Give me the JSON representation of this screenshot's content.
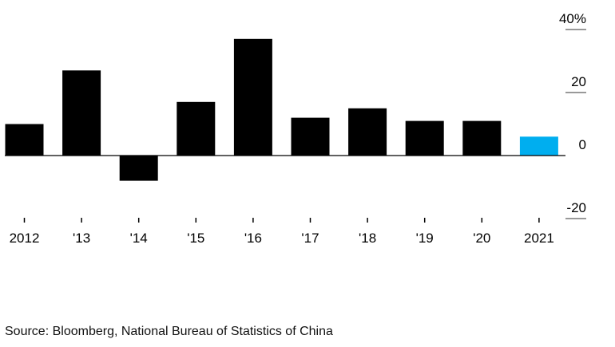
{
  "chart_data": {
    "type": "bar",
    "categories": [
      "2012",
      "'13",
      "'14",
      "'15",
      "'16",
      "'17",
      "'18",
      "'19",
      "'20",
      "2021"
    ],
    "values": [
      10,
      27,
      -8,
      17,
      37,
      12,
      15,
      11,
      11,
      6
    ],
    "title": "",
    "xlabel": "",
    "ylabel": "",
    "ylim": [
      -20,
      40
    ],
    "yticks": [
      {
        "value": 40,
        "label": "40%"
      },
      {
        "value": 20,
        "label": "20"
      },
      {
        "value": 0,
        "label": "0"
      },
      {
        "value": -20,
        "label": "-20"
      }
    ],
    "y_axis_position": "right",
    "grid": false,
    "legend": "none",
    "colors": {
      "bar": "#000000",
      "highlight": "#00aeef",
      "axis": "#000000",
      "tick": "#999999"
    },
    "highlight_category": "2021"
  },
  "footer": {
    "source": "Source: Bloomberg, National Bureau of Statistics of China"
  }
}
